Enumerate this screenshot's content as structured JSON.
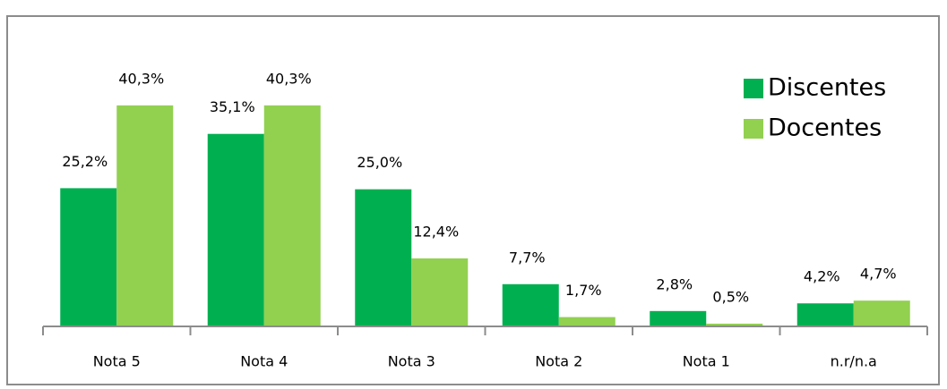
{
  "chart_data": {
    "type": "bar",
    "categories": [
      "Nota 5",
      "Nota 4",
      "Nota 3",
      "Nota 2",
      "Nota 1",
      "n.r/n.a"
    ],
    "series": [
      {
        "name": "Discentes",
        "color": "#00b050",
        "values": [
          25.2,
          35.1,
          25.0,
          7.7,
          2.8,
          4.2
        ],
        "value_labels": [
          "25,2%",
          "35,1%",
          "25,0%",
          "7,7%",
          "2,8%",
          "4,2%"
        ]
      },
      {
        "name": "Docentes",
        "color": "#92d050",
        "values": [
          40.3,
          40.3,
          12.4,
          1.7,
          0.5,
          4.7
        ],
        "value_labels": [
          "40,3%",
          "40,3%",
          "12,4%",
          "1,7%",
          "0,5%",
          "4,7%"
        ]
      }
    ],
    "ylim": [
      0,
      45
    ],
    "legend": "top-right"
  }
}
